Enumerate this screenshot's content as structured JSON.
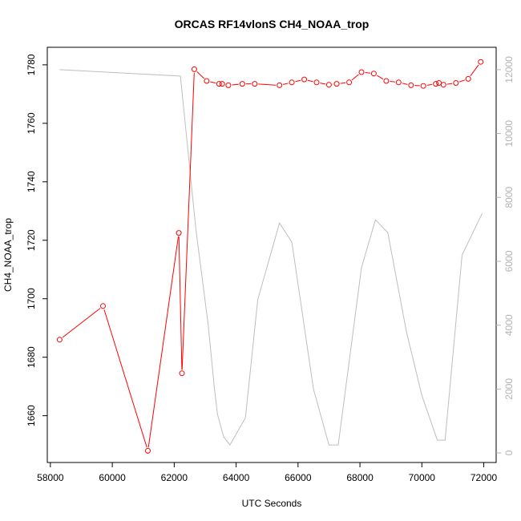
{
  "chart_data": {
    "type": "line",
    "title": "ORCAS RF14vlonS CH4_NOAA_trop",
    "xlabel": "UTC Seconds",
    "ylabel": "CH4_NOAA_trop",
    "xlim": [
      57900,
      72400
    ],
    "ylim": [
      1644,
      1786
    ],
    "y2lim": [
      -300,
      12700
    ],
    "x_ticks": [
      58000,
      60000,
      62000,
      64000,
      66000,
      68000,
      70000,
      72000
    ],
    "y_ticks": [
      1660,
      1680,
      1700,
      1720,
      1740,
      1760,
      1780
    ],
    "y2_ticks": [
      0,
      2000,
      4000,
      6000,
      8000,
      10000,
      12000
    ],
    "colors": {
      "ch4": "#ff0000",
      "altitude": "#bebebe"
    },
    "series": [
      {
        "role": "primary",
        "x": [
          58300,
          59700,
          61150,
          62150,
          62250,
          62650,
          63050,
          63450,
          63550,
          63750,
          64200,
          64600,
          65400,
          65800,
          66200,
          66600,
          67000,
          67250,
          67650,
          68050,
          68450,
          68850,
          69250,
          69650,
          70050,
          70450,
          70550,
          70700,
          71100,
          71500,
          71900
        ],
        "y": [
          1686,
          1697.5,
          1648,
          1722.5,
          1674.5,
          1778.5,
          1774.5,
          1773.5,
          1773.5,
          1773,
          1773.5,
          1773.5,
          1773,
          1774,
          1775,
          1774,
          1773.2,
          1773.5,
          1774,
          1777.5,
          1777,
          1774.5,
          1774,
          1773,
          1772.8,
          1773.5,
          1773.8,
          1773.2,
          1773.8,
          1775.2,
          1781
        ]
      },
      {
        "role": "secondary",
        "x": [
          58300,
          62200,
          62700,
          63100,
          63300,
          63400,
          63600,
          63800,
          64300,
          64700,
          65400,
          65800,
          66500,
          67000,
          67300,
          68050,
          68500,
          68900,
          69500,
          70000,
          70500,
          70750,
          71300,
          71950
        ],
        "y": [
          12000,
          11800,
          7000,
          4000,
          2000,
          1200,
          500,
          250,
          1100,
          4800,
          7200,
          6600,
          2000,
          250,
          250,
          5800,
          7300,
          6900,
          3800,
          1800,
          400,
          400,
          6200,
          7500
        ]
      }
    ]
  }
}
